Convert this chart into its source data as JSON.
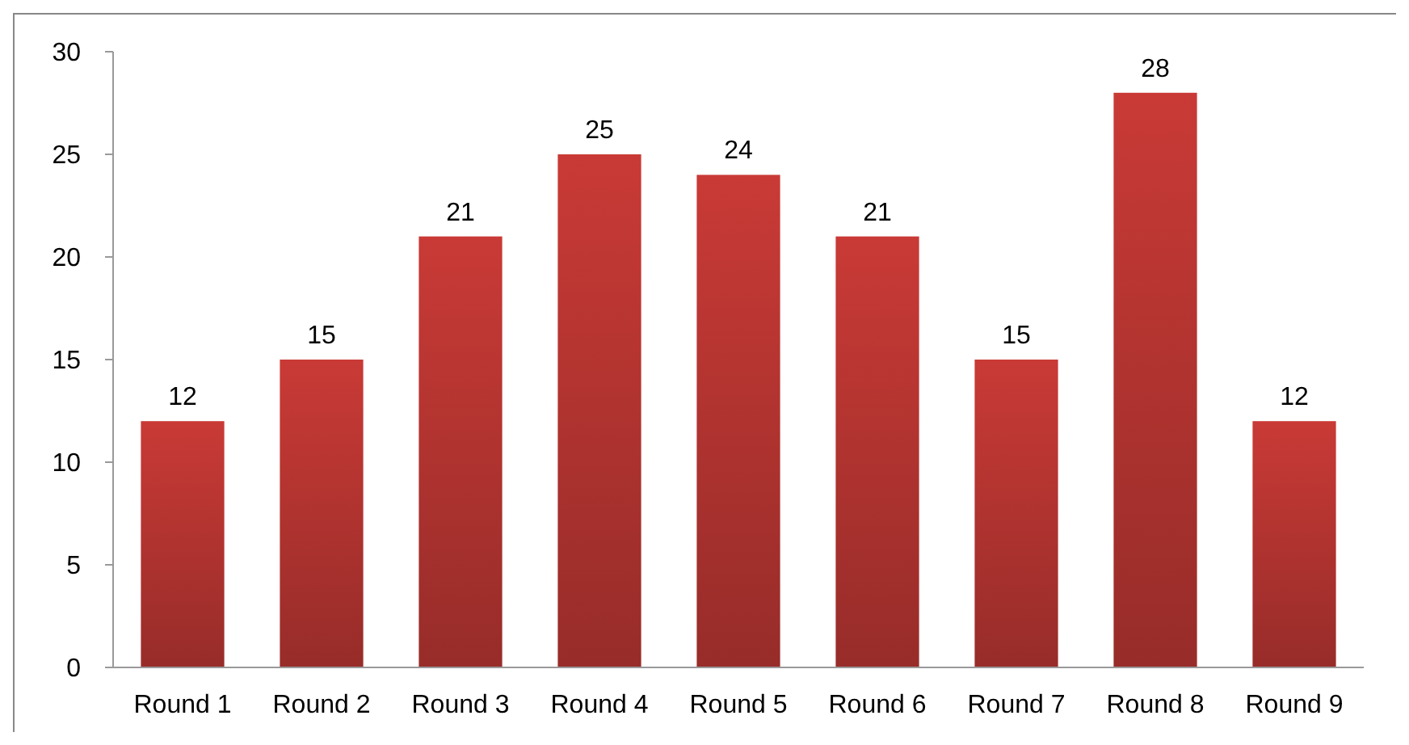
{
  "chart_data": {
    "type": "bar",
    "categories": [
      "Round 1",
      "Round 2",
      "Round 3",
      "Round 4",
      "Round 5",
      "Round 6",
      "Round 7",
      "Round 8",
      "Round 9"
    ],
    "values": [
      12,
      15,
      21,
      25,
      24,
      21,
      15,
      28,
      12
    ],
    "color": "#c93a36",
    "ylim": [
      0,
      30
    ],
    "yticks": [
      0,
      5,
      10,
      15,
      20,
      25,
      30
    ],
    "data_labels": true,
    "grid": false
  }
}
